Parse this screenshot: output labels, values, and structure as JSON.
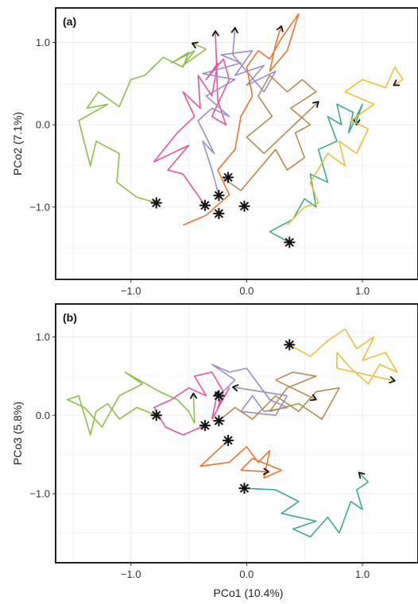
{
  "chart_data": [
    {
      "panel": "(a)",
      "type": "line",
      "xlabel": "",
      "ylabel": "PCo2 (7.1%)",
      "xlim": [
        -1.65,
        1.48
      ],
      "ylim": [
        -1.88,
        1.42
      ],
      "xticks": [
        -1.0,
        0.0,
        1.0
      ],
      "xtick_labels": [
        "−1.0",
        "0.0",
        "1.0"
      ],
      "yticks": [
        -1.0,
        0.0,
        1.0
      ],
      "ytick_labels": [
        "−1.0",
        "0.0",
        "1.0"
      ],
      "grid": true,
      "series": [
        {
          "color": "#8cbf45",
          "points": [
            [
              -0.78,
              -0.95
            ],
            [
              -0.95,
              -0.88
            ],
            [
              -1.12,
              -0.7
            ],
            [
              -1.1,
              -0.35
            ],
            [
              -1.3,
              -0.2
            ],
            [
              -1.35,
              -0.5
            ],
            [
              -1.45,
              0.05
            ],
            [
              -1.2,
              0.25
            ],
            [
              -1.38,
              0.2
            ],
            [
              -1.28,
              0.4
            ],
            [
              -1.1,
              0.22
            ],
            [
              -1.0,
              0.55
            ],
            [
              -0.88,
              0.6
            ],
            [
              -0.72,
              0.82
            ],
            [
              -0.55,
              0.7
            ],
            [
              -0.5,
              0.88
            ],
            [
              -0.65,
              0.75
            ],
            [
              -0.45,
              0.9
            ],
            [
              -0.55,
              0.72
            ],
            [
              -0.35,
              0.92
            ]
          ],
          "arrow_end": [
            -0.47,
            0.99
          ]
        },
        {
          "color": "#e8539b",
          "points": [
            [
              -0.36,
              -0.98
            ],
            [
              -0.55,
              -0.6
            ],
            [
              -0.68,
              -0.55
            ],
            [
              -0.5,
              -0.25
            ],
            [
              -0.8,
              -0.45
            ],
            [
              -0.6,
              -0.1
            ],
            [
              -0.45,
              0.1
            ],
            [
              -0.55,
              0.4
            ],
            [
              -0.4,
              0.2
            ],
            [
              -0.42,
              0.6
            ],
            [
              -0.3,
              0.35
            ],
            [
              -0.25,
              0.75
            ],
            [
              -0.35,
              0.55
            ],
            [
              -0.2,
              0.8
            ],
            [
              -0.15,
              0.55
            ],
            [
              -0.3,
              0.1
            ],
            [
              -0.18,
              0.0
            ],
            [
              -0.25,
              0.3
            ]
          ],
          "arrow_end": [
            -0.27,
            1.14
          ]
        },
        {
          "color": "#9a8ccc",
          "points": [
            [
              -0.24,
              -0.86
            ],
            [
              -0.3,
              -0.55
            ],
            [
              -0.38,
              -0.2
            ],
            [
              -0.28,
              -0.35
            ],
            [
              -0.42,
              0.05
            ],
            [
              -0.3,
              0.2
            ],
            [
              -0.15,
              0.1
            ],
            [
              -0.35,
              0.35
            ],
            [
              -0.1,
              0.55
            ],
            [
              -0.38,
              0.62
            ],
            [
              -0.05,
              0.75
            ],
            [
              -0.22,
              0.85
            ],
            [
              0.05,
              0.9
            ],
            [
              -0.1,
              0.6
            ],
            [
              0.15,
              0.72
            ],
            [
              0.0,
              0.48
            ],
            [
              0.25,
              0.65
            ],
            [
              0.15,
              0.4
            ],
            [
              -0.12,
              0.85
            ]
          ],
          "arrow_end": [
            -0.1,
            1.18
          ]
        },
        {
          "color": "#e8752b",
          "points": [
            [
              -0.55,
              -1.22
            ],
            [
              -0.35,
              -1.1
            ],
            [
              -0.15,
              -0.85
            ],
            [
              -0.25,
              -0.55
            ],
            [
              -0.1,
              -0.3
            ],
            [
              -0.05,
              0.1
            ],
            [
              0.05,
              0.35
            ],
            [
              0.0,
              0.7
            ],
            [
              0.1,
              0.9
            ],
            [
              0.2,
              0.8
            ],
            [
              0.3,
              1.05
            ],
            [
              0.45,
              1.35
            ],
            [
              0.35,
              0.9
            ],
            [
              0.2,
              0.65
            ],
            [
              0.25,
              0.98
            ]
          ],
          "arrow_end": [
            0.3,
            1.2
          ]
        },
        {
          "color": "#b58c4e",
          "points": [
            [
              -0.2,
              -0.65
            ],
            [
              -0.05,
              -0.8
            ],
            [
              0.1,
              -0.55
            ],
            [
              0.25,
              -0.3
            ],
            [
              0.35,
              -0.55
            ],
            [
              0.5,
              -0.4
            ],
            [
              0.42,
              -0.1
            ],
            [
              0.55,
              0.0
            ],
            [
              0.38,
              0.2
            ],
            [
              0.6,
              0.4
            ],
            [
              0.48,
              0.55
            ],
            [
              0.35,
              0.4
            ],
            [
              0.2,
              0.6
            ],
            [
              0.1,
              0.35
            ],
            [
              0.22,
              0.1
            ],
            [
              0.0,
              -0.15
            ],
            [
              0.15,
              -0.35
            ]
          ],
          "arrow_end": [
            0.62,
            0.28
          ]
        },
        {
          "color": "#3aaa8a",
          "points": [
            [
              0.37,
              -1.43
            ],
            [
              0.2,
              -1.3
            ],
            [
              0.4,
              -1.15
            ],
            [
              0.5,
              -0.9
            ],
            [
              0.6,
              -1.0
            ],
            [
              0.55,
              -0.6
            ],
            [
              0.7,
              -0.7
            ],
            [
              0.62,
              -0.3
            ],
            [
              0.78,
              -0.2
            ],
            [
              0.7,
              0.1
            ],
            [
              0.82,
              0.0
            ],
            [
              0.78,
              0.25
            ],
            [
              0.92,
              0.15
            ],
            [
              0.88,
              -0.1
            ],
            [
              1.0,
              0.25
            ],
            [
              0.95,
              0.05
            ]
          ],
          "arrow_end": [
            0.95,
            0.0
          ]
        },
        {
          "color": "#ecbe3a",
          "points": [
            [
              0.35,
              -1.22
            ],
            [
              0.5,
              -1.0
            ],
            [
              0.62,
              -0.95
            ],
            [
              0.55,
              -0.7
            ],
            [
              0.7,
              -0.35
            ],
            [
              0.85,
              -0.5
            ],
            [
              0.8,
              -0.2
            ],
            [
              0.95,
              -0.35
            ],
            [
              1.05,
              -0.05
            ],
            [
              0.9,
              0.05
            ],
            [
              1.1,
              0.25
            ],
            [
              0.85,
              0.4
            ],
            [
              1.0,
              0.55
            ],
            [
              1.2,
              0.45
            ],
            [
              1.28,
              0.7
            ],
            [
              1.35,
              0.55
            ]
          ],
          "arrow_end": [
            1.27,
            0.48
          ]
        }
      ],
      "start_markers": [
        [
          -0.78,
          -0.95
        ],
        [
          -0.36,
          -0.98
        ],
        [
          -0.24,
          -0.86
        ],
        [
          -0.24,
          -1.08
        ],
        [
          -0.16,
          -0.64
        ],
        [
          -0.02,
          -0.99
        ],
        [
          0.37,
          -1.43
        ]
      ]
    },
    {
      "panel": "(b)",
      "type": "line",
      "xlabel": "PCo1 (10.4%)",
      "ylabel": "PCo3 (5.8%)",
      "xlim": [
        -1.65,
        1.48
      ],
      "ylim": [
        -1.88,
        1.42
      ],
      "xticks": [
        -1.0,
        0.0,
        1.0
      ],
      "xtick_labels": [
        "−1.0",
        "0.0",
        "1.0"
      ],
      "yticks": [
        -1.0,
        0.0,
        1.0
      ],
      "ytick_labels": [
        "−1.0",
        "0.0",
        "1.0"
      ],
      "grid": true,
      "series": [
        {
          "color": "#8cbf45",
          "points": [
            [
              -0.78,
              0.0
            ],
            [
              -0.95,
              0.1
            ],
            [
              -1.1,
              -0.05
            ],
            [
              -1.2,
              0.15
            ],
            [
              -1.3,
              0.05
            ],
            [
              -1.35,
              -0.25
            ],
            [
              -1.45,
              0.25
            ],
            [
              -1.55,
              0.2
            ],
            [
              -1.4,
              0.1
            ],
            [
              -1.25,
              -0.15
            ],
            [
              -1.1,
              0.25
            ],
            [
              -0.9,
              0.4
            ],
            [
              -1.05,
              0.55
            ],
            [
              -0.75,
              0.3
            ],
            [
              -0.6,
              0.2
            ],
            [
              -0.5,
              0.05
            ],
            [
              -0.45,
              -0.1
            ]
          ],
          "arrow_end": [
            -0.46,
            0.28
          ]
        },
        {
          "color": "#e8539b",
          "points": [
            [
              -0.36,
              -0.13
            ],
            [
              -0.55,
              -0.25
            ],
            [
              -0.7,
              -0.15
            ],
            [
              -0.8,
              0.1
            ],
            [
              -0.65,
              0.2
            ],
            [
              -0.5,
              0.35
            ],
            [
              -0.35,
              0.25
            ],
            [
              -0.45,
              0.5
            ],
            [
              -0.3,
              0.55
            ],
            [
              -0.2,
              0.3
            ],
            [
              -0.25,
              0.1
            ],
            [
              -0.15,
              0.35
            ],
            [
              -0.3,
              -0.05
            ]
          ],
          "arrow_end": [
            -0.25,
            0.3
          ]
        },
        {
          "color": "#9a8ccc",
          "points": [
            [
              -0.24,
              0.25
            ],
            [
              -0.1,
              0.45
            ],
            [
              -0.3,
              0.65
            ],
            [
              -0.15,
              0.55
            ],
            [
              0.0,
              0.6
            ],
            [
              0.1,
              0.4
            ],
            [
              0.2,
              0.2
            ],
            [
              0.35,
              0.1
            ],
            [
              0.15,
              0.05
            ],
            [
              0.05,
              0.25
            ],
            [
              -0.05,
              0.05
            ],
            [
              0.25,
              0.0
            ],
            [
              0.35,
              0.25
            ]
          ],
          "arrow_end": [
            -0.12,
            0.36
          ]
        },
        {
          "color": "#e8752b",
          "points": [
            [
              -0.16,
              -0.32
            ],
            [
              -0.4,
              -0.65
            ],
            [
              -0.15,
              -0.6
            ],
            [
              0.0,
              -0.4
            ],
            [
              0.1,
              -0.6
            ],
            [
              0.2,
              -0.45
            ],
            [
              0.15,
              -0.8
            ],
            [
              0.3,
              -0.7
            ],
            [
              0.05,
              -0.55
            ],
            [
              -0.05,
              -0.7
            ]
          ],
          "arrow_end": [
            0.19,
            -0.72
          ]
        },
        {
          "color": "#b58c4e",
          "points": [
            [
              -0.24,
              -0.07
            ],
            [
              -0.1,
              0.1
            ],
            [
              0.05,
              -0.05
            ],
            [
              0.25,
              0.25
            ],
            [
              0.45,
              0.05
            ],
            [
              0.6,
              0.3
            ],
            [
              0.8,
              0.35
            ],
            [
              0.65,
              -0.05
            ],
            [
              0.45,
              0.15
            ],
            [
              0.2,
              0.05
            ],
            [
              0.35,
              0.35
            ],
            [
              0.6,
              0.5
            ],
            [
              0.4,
              0.55
            ],
            [
              0.25,
              0.45
            ]
          ],
          "arrow_end": [
            0.6,
            0.2
          ]
        },
        {
          "color": "#3aaa8a",
          "points": [
            [
              -0.02,
              -0.93
            ],
            [
              0.25,
              -0.95
            ],
            [
              0.45,
              -1.1
            ],
            [
              0.3,
              -1.25
            ],
            [
              0.6,
              -1.35
            ],
            [
              0.4,
              -1.45
            ],
            [
              0.55,
              -1.55
            ],
            [
              0.7,
              -1.3
            ],
            [
              0.8,
              -1.5
            ],
            [
              0.9,
              -1.1
            ],
            [
              1.0,
              -1.2
            ],
            [
              0.95,
              -0.95
            ],
            [
              1.05,
              -0.85
            ]
          ],
          "arrow_end": [
            0.97,
            -0.73
          ]
        },
        {
          "color": "#ecbe3a",
          "points": [
            [
              0.37,
              0.9
            ],
            [
              0.55,
              0.75
            ],
            [
              0.7,
              0.95
            ],
            [
              0.85,
              1.1
            ],
            [
              0.95,
              0.85
            ],
            [
              1.1,
              1.0
            ],
            [
              1.0,
              0.7
            ],
            [
              1.2,
              0.8
            ],
            [
              1.3,
              0.55
            ],
            [
              1.15,
              0.65
            ],
            [
              1.05,
              0.4
            ],
            [
              0.9,
              0.6
            ],
            [
              0.78,
              0.8
            ],
            [
              0.78,
              0.6
            ]
          ],
          "arrow_end": [
            1.28,
            0.44
          ]
        }
      ],
      "start_markers": [
        [
          -0.78,
          0.0
        ],
        [
          -0.36,
          -0.13
        ],
        [
          -0.24,
          0.25
        ],
        [
          -0.24,
          -0.07
        ],
        [
          -0.16,
          -0.32
        ],
        [
          -0.02,
          -0.93
        ],
        [
          0.37,
          0.9
        ]
      ]
    }
  ]
}
